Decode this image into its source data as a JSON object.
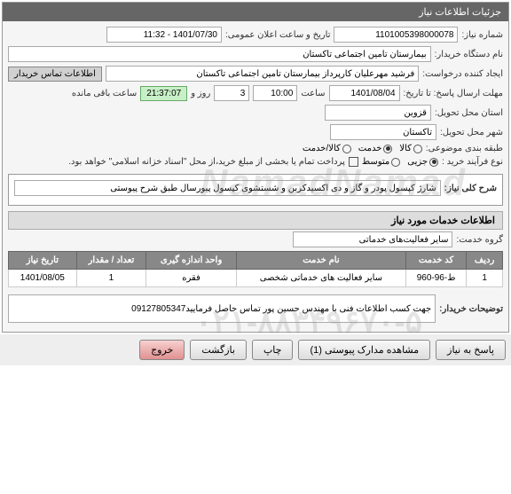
{
  "header": {
    "title": "جزئیات اطلاعات نیاز"
  },
  "fields": {
    "need_no_label": "شماره نیاز:",
    "need_no": "1101005398000078",
    "announce_label": "تاریخ و ساعت اعلان عمومی:",
    "announce": "1401/07/30 - 11:32",
    "device_label": "نام دستگاه خریدار:",
    "device": "بیمارستان تامین اجتماعی تاکستان",
    "requester_label": "ایجاد کننده درخواست:",
    "requester": "فرشید مهرعلیان کارپرداز بیمارستان تامین اجتماعی تاکستان",
    "contact_btn": "اطلاعات تماس خریدار",
    "deadline_label": "مهلت ارسال پاسخ: تا تاریخ:",
    "deadline_date": "1401/08/04",
    "time_label": "ساعت",
    "deadline_time": "10:00",
    "days": "3",
    "days_label": "روز و",
    "countdown": "21:37:07",
    "remaining_label": "ساعت باقی مانده",
    "province_label": "استان محل تحویل:",
    "province": "قزوین",
    "city_label": "شهر محل تحویل:",
    "city": "تاکستان",
    "category_label": "طبقه بندی موضوعی:",
    "cat_goods": "کالا",
    "cat_service": "خدمت",
    "cat_both": "کالا/خدمت",
    "purchase_type_label": "نوع فرآیند خرید :",
    "pt_minor": "جزیی",
    "pt_medium": "متوسط",
    "payment_note": "پرداخت تمام یا بخشی از مبلغ خرید،از محل \"اسناد خزانه اسلامی\" خواهد بود."
  },
  "desc": {
    "title_label": "شرح کلی نیاز:",
    "title_text": "شارژ کپسول پودر و گاز و دی اکسیدکربن و شستشوی کپسول پیورسال طبق شرح پیوستی",
    "services_header": "اطلاعات خدمات مورد نیاز",
    "group_label": "گروه خدمت:",
    "group_value": "سایر فعالیت‌های خدماتی"
  },
  "table": {
    "headers": [
      "ردیف",
      "کد خدمت",
      "نام خدمت",
      "واحد اندازه گیری",
      "تعداد / مقدار",
      "تاریخ نیاز"
    ],
    "rows": [
      [
        "1",
        "ط-96-960",
        "سایر فعالیت های خدماتی شخصی",
        "فقره",
        "1",
        "1401/08/05"
      ]
    ]
  },
  "buyer_note": {
    "label": "توضیحات خریدار:",
    "text": "جهت کسب اطلاعات فنی با مهندس حسین پور تماس حاصل فرمایید09127805347"
  },
  "footer": {
    "respond": "پاسخ به نیاز",
    "attachments": "مشاهده مدارک پیوستی (1)",
    "print": "چاپ",
    "back": "بازگشت",
    "exit": "خروج"
  },
  "watermark": "NamadNamad",
  "watermark_phone": "۰۲۱-۸۸۳۴۹۶۷۰-۵"
}
